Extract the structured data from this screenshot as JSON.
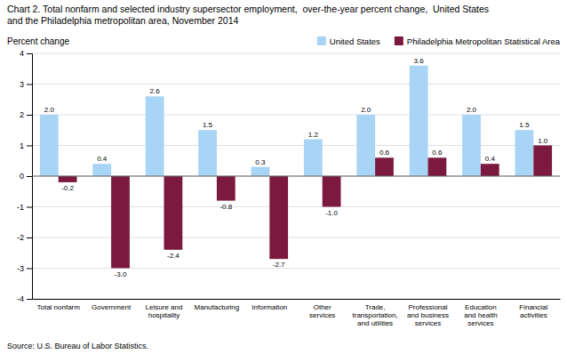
{
  "chart_data": {
    "type": "bar",
    "title": "Chart 2. Total nonfarm and selected industry supersector employment,  over-the-year percent change,  United States\nand the Philadelphia metropolitan area, November 2014",
    "ylabel": "Percent change",
    "source": "Source: U.S. Bureau of Labor Statistics.",
    "categories": [
      "Total nonfarm",
      "Government",
      "Leisure and\nhospitality",
      "Manufacturing",
      "Information",
      "Other\nservices",
      "Trade,\ntransportation,\nand utilities",
      "Professional\nand business\nservices",
      "Education\nand health\nservices",
      "Financial\nactivities"
    ],
    "series": [
      {
        "name": "United States",
        "color": "#a8d4f5",
        "values": [
          2.0,
          0.4,
          2.6,
          1.5,
          0.3,
          1.2,
          2.0,
          3.6,
          2.0,
          1.5
        ],
        "value_labels": [
          "2.0",
          "0.4",
          "2.6",
          "1.5",
          "0.3",
          "1.2",
          "2.0",
          "3.6",
          "2.0",
          "1.5"
        ]
      },
      {
        "name": "Philadelphia Metropolitan Statistical Area",
        "color": "#7b1a3e",
        "values": [
          -0.2,
          -3.0,
          -2.4,
          -0.8,
          -2.7,
          -1.0,
          0.6,
          0.6,
          0.4,
          1.0
        ],
        "value_labels": [
          "-0.2",
          "-3.0",
          "-2.4",
          "-0.8",
          "-2.7",
          "-1.0",
          "0.6",
          "0.6",
          "0.4",
          "1.0"
        ]
      }
    ],
    "ylim": [
      -4.0,
      4.0
    ],
    "yticks": [
      -4,
      -3,
      -2,
      -1,
      0,
      1,
      2,
      3,
      4
    ],
    "grid": true,
    "legend": "upper right",
    "data_labels": true
  }
}
